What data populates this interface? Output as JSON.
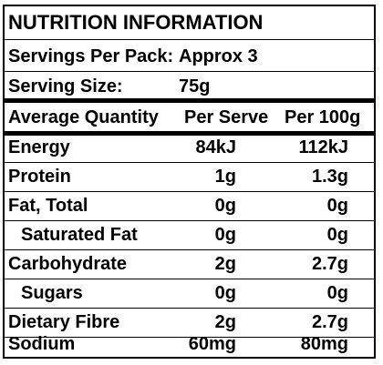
{
  "panel": {
    "title": "NUTRITION INFORMATION",
    "servings_label": "Servings Per Pack:",
    "servings_value": "Approx 3",
    "serving_size_label": "Serving Size:",
    "serving_size_value": "75g"
  },
  "table": {
    "columns": [
      "Average Quantity",
      "Per Serve",
      "Per 100g"
    ],
    "rows": [
      {
        "label": "Energy",
        "per_serve": "84kJ",
        "per_100g": "112kJ"
      },
      {
        "label": "Protein",
        "per_serve": "1g",
        "per_100g": "1.3g"
      },
      {
        "label": "Fat, Total",
        "per_serve": "0g",
        "per_100g": "0g"
      },
      {
        "label": "Saturated Fat",
        "per_serve": "0g",
        "per_100g": "0g"
      },
      {
        "label": "Carbohydrate",
        "per_serve": "2g",
        "per_100g": "2.7g"
      },
      {
        "label": "Sugars",
        "per_serve": "0g",
        "per_100g": "0g"
      },
      {
        "label": "Dietary Fibre",
        "per_serve": "2g",
        "per_100g": "2.7g"
      },
      {
        "label": "Sodium",
        "per_serve": "60mg",
        "per_100g": "80mg"
      }
    ]
  }
}
